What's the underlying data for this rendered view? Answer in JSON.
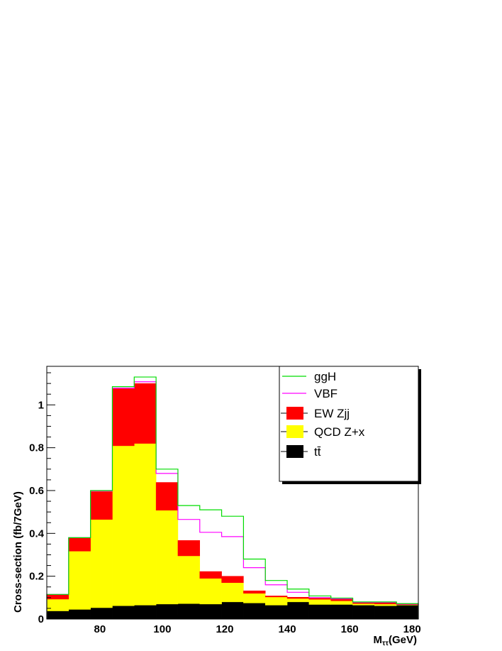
{
  "chart_data": {
    "type": "bar",
    "stacked": true,
    "xlabel": "M",
    "xlabel_sub": "ττ",
    "xlabel_unit": "(GeV)",
    "ylabel": "Cross-section (fb/7GeV)",
    "xlim": [
      63,
      182
    ],
    "ylim": [
      0,
      1.18
    ],
    "x_ticks": [
      80,
      100,
      120,
      140,
      160,
      180
    ],
    "y_ticks": [
      0,
      0.2,
      0.4,
      0.6,
      0.8,
      1
    ],
    "y_tick_labels": [
      "0",
      "0.2",
      "0.4",
      "0.6",
      "0.8",
      "1"
    ],
    "bin_edges": [
      63,
      70,
      77,
      84,
      91,
      98,
      105,
      112,
      119,
      126,
      133,
      140,
      147,
      154,
      161,
      168,
      175,
      182
    ],
    "stack": [
      {
        "name": "t t̄",
        "color": "#000000",
        "values": [
          0.038,
          0.045,
          0.053,
          0.062,
          0.065,
          0.07,
          0.072,
          0.07,
          0.08,
          0.075,
          0.065,
          0.08,
          0.068,
          0.068,
          0.065,
          0.062,
          0.065
        ]
      },
      {
        "name": "QCD Z+x",
        "color": "#ffff00",
        "values": [
          0.055,
          0.272,
          0.412,
          0.747,
          0.755,
          0.438,
          0.223,
          0.12,
          0.09,
          0.045,
          0.038,
          0.016,
          0.024,
          0.017,
          0.007,
          0.008,
          0.002
        ]
      },
      {
        "name": "EW Zjj",
        "color": "#ff0000",
        "values": [
          0.022,
          0.063,
          0.13,
          0.267,
          0.28,
          0.13,
          0.072,
          0.032,
          0.03,
          0.012,
          0.005,
          0.006,
          0.006,
          0.008,
          0.005,
          0.008,
          0.003
        ]
      }
    ],
    "lines": [
      {
        "name": "VBF",
        "color": "#ff00ff",
        "values": [
          0.115,
          0.38,
          0.598,
          1.078,
          1.108,
          0.68,
          0.465,
          0.405,
          0.385,
          0.24,
          0.16,
          0.125,
          0.1,
          0.095,
          0.078,
          0.078,
          0.07
        ]
      },
      {
        "name": "ggH",
        "color": "#00dd00",
        "values": [
          0.115,
          0.38,
          0.6,
          1.085,
          1.13,
          0.7,
          0.53,
          0.51,
          0.48,
          0.28,
          0.18,
          0.14,
          0.108,
          0.098,
          0.08,
          0.08,
          0.072
        ]
      }
    ],
    "legend": [
      {
        "label": "ggH",
        "color": "#00dd00",
        "style": "line"
      },
      {
        "label": "VBF",
        "color": "#ff00ff",
        "style": "line"
      },
      {
        "label": "EW Zjj",
        "color": "#ff0000",
        "style": "box"
      },
      {
        "label": "QCD Z+x",
        "color": "#ffff00",
        "style": "box"
      },
      {
        "label": "tt̄",
        "color": "#000000",
        "style": "box"
      }
    ],
    "legend_position": "top-right",
    "grid": false
  }
}
